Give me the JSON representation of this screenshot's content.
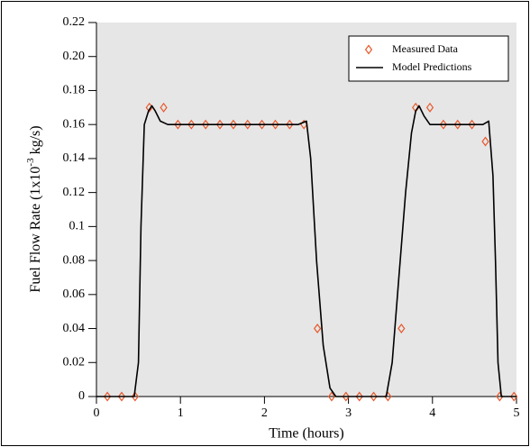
{
  "chart_data": {
    "type": "line",
    "xlabel": "Time (hours)",
    "ylabel": [
      "Fuel Flow Rate (1x10",
      "-3",
      " kg/s)"
    ],
    "xlim": [
      0,
      5
    ],
    "xticks": [
      0,
      1,
      2,
      3,
      4,
      5
    ],
    "ylim": [
      0,
      0.22
    ],
    "yticks": [
      0,
      0.02,
      0.04,
      0.06,
      0.08,
      0.1,
      0.12,
      0.14,
      0.16,
      0.18,
      {
        "value": 0.2,
        "label": "0.20"
      },
      0.22
    ],
    "background": "#e6e6e6",
    "legend": "top-right",
    "series": [
      {
        "name": "Measured Data",
        "color": "#e8572a",
        "marker": "diamond",
        "x": [
          0.13,
          0.3,
          0.46,
          0.63,
          0.8,
          0.97,
          1.13,
          1.3,
          1.47,
          1.63,
          1.8,
          1.97,
          2.13,
          2.3,
          2.47,
          2.63,
          2.8,
          2.97,
          3.13,
          3.3,
          3.47,
          3.63,
          3.8,
          3.97,
          4.13,
          4.3,
          4.47,
          4.63,
          4.8,
          4.97
        ],
        "values": [
          0,
          0,
          0,
          0.17,
          0.17,
          0.16,
          0.16,
          0.16,
          0.16,
          0.16,
          0.16,
          0.16,
          0.16,
          0.16,
          0.16,
          0.04,
          0,
          0,
          0,
          0,
          0,
          0.04,
          0.17,
          0.17,
          0.16,
          0.16,
          0.16,
          0.15,
          0,
          0
        ]
      },
      {
        "name": "Model Predictions",
        "color": "#000000",
        "marker": "line",
        "x": [
          0,
          0.45,
          0.5,
          0.53,
          0.57,
          0.62,
          0.66,
          0.7,
          0.76,
          0.85,
          2.4,
          2.5,
          2.55,
          2.62,
          2.7,
          2.78,
          2.85,
          3.45,
          3.52,
          3.6,
          3.68,
          3.75,
          3.8,
          3.84,
          3.9,
          3.97,
          4.6,
          4.67,
          4.72,
          4.75,
          4.78,
          4.82,
          5
        ],
        "values": [
          0,
          0,
          0.02,
          0.1,
          0.16,
          0.168,
          0.171,
          0.168,
          0.162,
          0.16,
          0.16,
          0.162,
          0.14,
          0.08,
          0.03,
          0.005,
          0,
          0,
          0.02,
          0.07,
          0.12,
          0.155,
          0.168,
          0.171,
          0.165,
          0.16,
          0.16,
          0.162,
          0.13,
          0.08,
          0.02,
          0,
          0
        ]
      }
    ]
  }
}
